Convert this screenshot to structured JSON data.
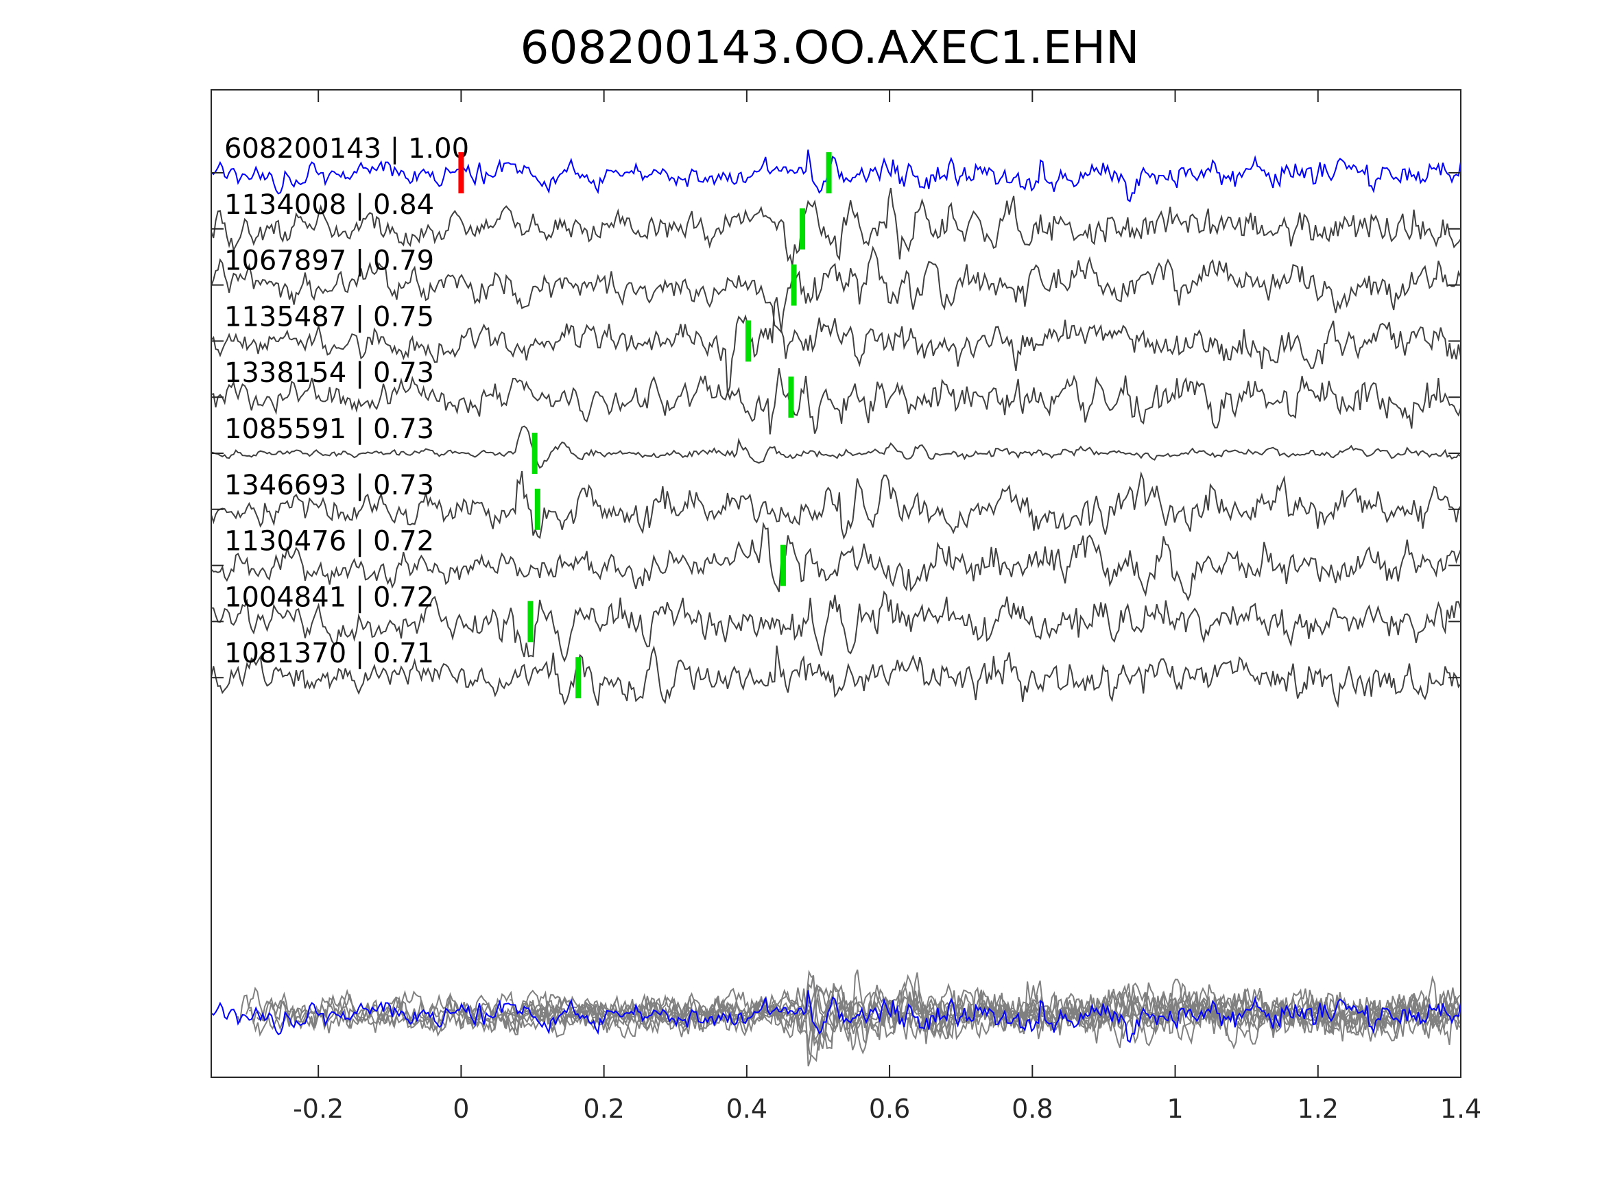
{
  "chart_data": {
    "type": "line",
    "title": "608200143.OO.AXEC1.EHN",
    "xlabel": "",
    "ylabel": "",
    "xlim": [
      -0.35,
      1.4
    ],
    "x_ticks": [
      -0.2,
      0,
      0.2,
      0.4,
      0.6,
      0.8,
      1,
      1.2,
      1.4
    ],
    "x_tick_labels": [
      "-0.2",
      "0",
      "0.2",
      "0.4",
      "0.6",
      "0.8",
      "1",
      "1.2",
      "1.4"
    ],
    "grid": false,
    "legend": "none",
    "colors": {
      "template": "#0000ff",
      "match": "#404040",
      "stack": "#808080",
      "pick_template": "#ff0000",
      "pick_match": "#00dd00",
      "axes": "#262626"
    },
    "template_pick_time": 0.0,
    "traces": [
      {
        "label": "608200143 | 1.00",
        "id": "608200143",
        "cc": 1.0,
        "pick_time": 0.515,
        "template": true
      },
      {
        "label": "1134008 | 0.84",
        "id": "1134008",
        "cc": 0.84,
        "pick_time": 0.478
      },
      {
        "label": "1067897 | 0.79",
        "id": "1067897",
        "cc": 0.79,
        "pick_time": 0.466
      },
      {
        "label": "1135487 | 0.75",
        "id": "1135487",
        "cc": 0.75,
        "pick_time": 0.402
      },
      {
        "label": "1338154 | 0.73",
        "id": "1338154",
        "cc": 0.73,
        "pick_time": 0.462
      },
      {
        "label": "1085591 | 0.73",
        "id": "1085591",
        "cc": 0.73,
        "pick_time": 0.103
      },
      {
        "label": "1346693 | 0.73",
        "id": "1346693",
        "cc": 0.73,
        "pick_time": 0.107
      },
      {
        "label": "1130476 | 0.72",
        "id": "1130476",
        "cc": 0.72,
        "pick_time": 0.451
      },
      {
        "label": "1004841 | 0.72",
        "id": "1004841",
        "cc": 0.72,
        "pick_time": 0.097
      },
      {
        "label": "1081370 | 0.71",
        "id": "1081370",
        "cc": 0.71,
        "pick_time": 0.164
      }
    ]
  }
}
